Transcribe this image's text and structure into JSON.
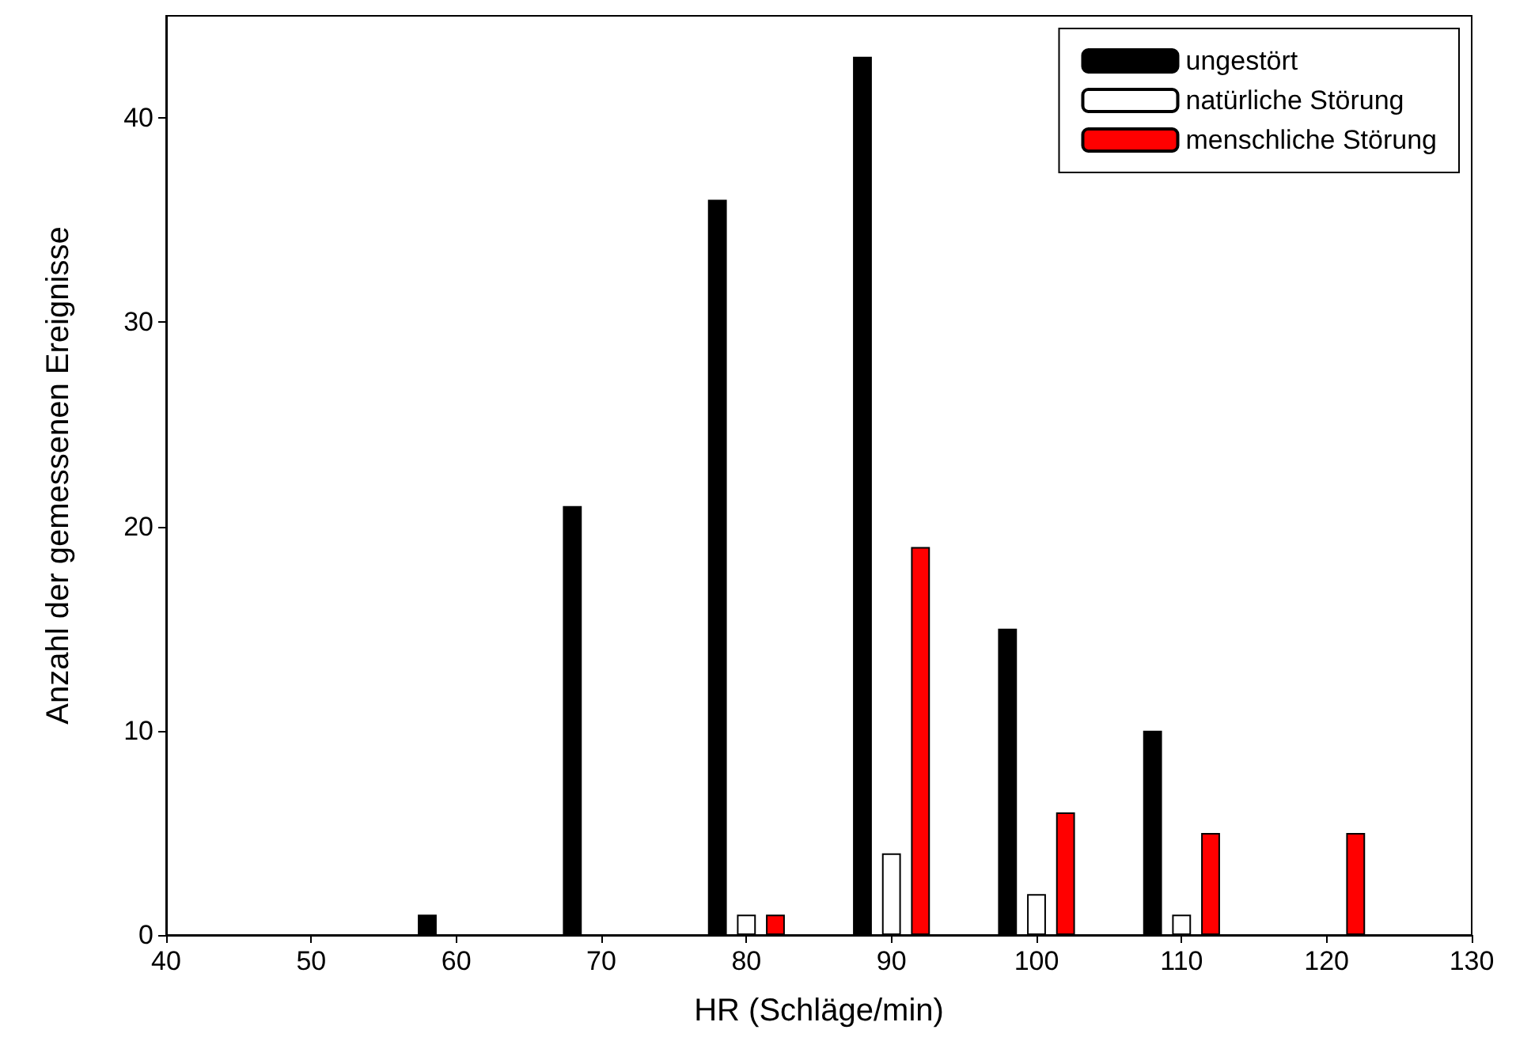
{
  "chart_data": {
    "type": "bar",
    "xlabel": "HR (Schläge/min)",
    "ylabel": "Anzahl der gemessenen Ereignisse",
    "series": [
      {
        "name": "ungestört",
        "color": "#000000",
        "x": [
          58,
          68,
          78,
          88,
          98,
          108
        ],
        "values": [
          1,
          21,
          36,
          43,
          15,
          10
        ]
      },
      {
        "name": "natürliche Störung",
        "color": "#ffffff",
        "x": [
          80,
          90,
          100,
          110
        ],
        "values": [
          1,
          4,
          2,
          1
        ]
      },
      {
        "name": "menschliche Störung",
        "color": "#ff0000",
        "x": [
          82,
          92,
          102,
          112,
          122
        ],
        "values": [
          1,
          19,
          6,
          5,
          5
        ]
      }
    ],
    "xlim": [
      40,
      130
    ],
    "xticks": [
      40,
      50,
      60,
      70,
      80,
      90,
      100,
      110,
      120,
      130
    ],
    "ylim": [
      0,
      45
    ],
    "yticks": [
      0,
      10,
      20,
      30,
      40
    ],
    "grid": false,
    "legend": "top right"
  }
}
